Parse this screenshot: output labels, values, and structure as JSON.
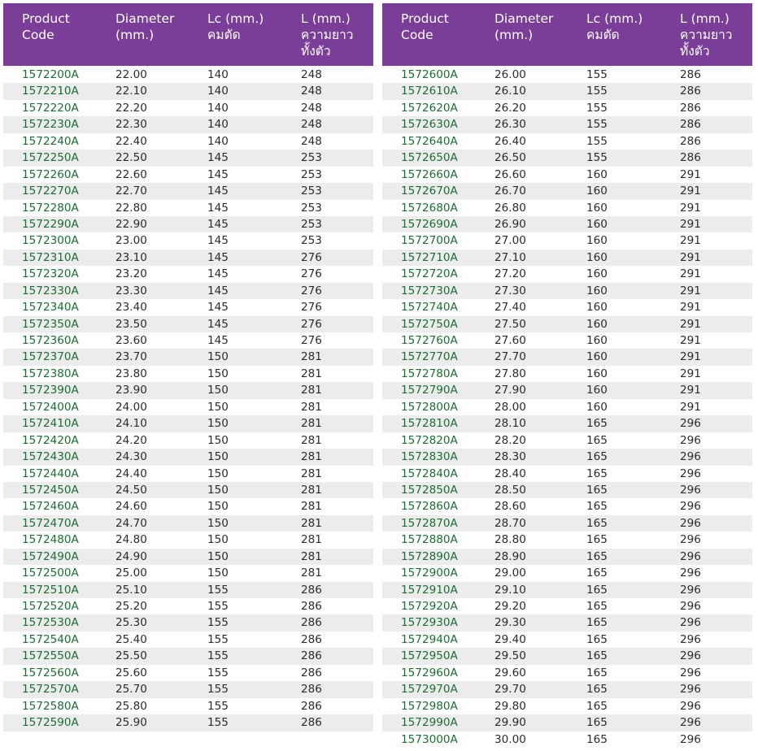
{
  "columns": {
    "code_line1": "Product",
    "code_line2": "Code",
    "diameter_line1": "Diameter",
    "diameter_line2": "(mm.)",
    "lc_line1": "Lc (mm.)",
    "lc_line2": "คมตัด",
    "l_line1": "L (mm.)",
    "l_line2": "ความยาว",
    "l_line3": "ทั้งตัว"
  },
  "left_rows": [
    [
      "1572200A",
      "22.00",
      "140",
      "248"
    ],
    [
      "1572210A",
      "22.10",
      "140",
      "248"
    ],
    [
      "1572220A",
      "22.20",
      "140",
      "248"
    ],
    [
      "1572230A",
      "22.30",
      "140",
      "248"
    ],
    [
      "1572240A",
      "22.40",
      "140",
      "248"
    ],
    [
      "1572250A",
      "22.50",
      "145",
      "253"
    ],
    [
      "1572260A",
      "22.60",
      "145",
      "253"
    ],
    [
      "1572270A",
      "22.70",
      "145",
      "253"
    ],
    [
      "1572280A",
      "22.80",
      "145",
      "253"
    ],
    [
      "1572290A",
      "22.90",
      "145",
      "253"
    ],
    [
      "1572300A",
      "23.00",
      "145",
      "253"
    ],
    [
      "1572310A",
      "23.10",
      "145",
      "276"
    ],
    [
      "1572320A",
      "23.20",
      "145",
      "276"
    ],
    [
      "1572330A",
      "23.30",
      "145",
      "276"
    ],
    [
      "1572340A",
      "23.40",
      "145",
      "276"
    ],
    [
      "1572350A",
      "23.50",
      "145",
      "276"
    ],
    [
      "1572360A",
      "23.60",
      "145",
      "276"
    ],
    [
      "1572370A",
      "23.70",
      "150",
      "281"
    ],
    [
      "1572380A",
      "23.80",
      "150",
      "281"
    ],
    [
      "1572390A",
      "23.90",
      "150",
      "281"
    ],
    [
      "1572400A",
      "24.00",
      "150",
      "281"
    ],
    [
      "1572410A",
      "24.10",
      "150",
      "281"
    ],
    [
      "1572420A",
      "24.20",
      "150",
      "281"
    ],
    [
      "1572430A",
      "24.30",
      "150",
      "281"
    ],
    [
      "1572440A",
      "24.40",
      "150",
      "281"
    ],
    [
      "1572450A",
      "24.50",
      "150",
      "281"
    ],
    [
      "1572460A",
      "24.60",
      "150",
      "281"
    ],
    [
      "1572470A",
      "24.70",
      "150",
      "281"
    ],
    [
      "1572480A",
      "24.80",
      "150",
      "281"
    ],
    [
      "1572490A",
      "24.90",
      "150",
      "281"
    ],
    [
      "1572500A",
      "25.00",
      "150",
      "281"
    ],
    [
      "1572510A",
      "25.10",
      "155",
      "286"
    ],
    [
      "1572520A",
      "25.20",
      "155",
      "286"
    ],
    [
      "1572530A",
      "25.30",
      "155",
      "286"
    ],
    [
      "1572540A",
      "25.40",
      "155",
      "286"
    ],
    [
      "1572550A",
      "25.50",
      "155",
      "286"
    ],
    [
      "1572560A",
      "25.60",
      "155",
      "286"
    ],
    [
      "1572570A",
      "25.70",
      "155",
      "286"
    ],
    [
      "1572580A",
      "25.80",
      "155",
      "286"
    ],
    [
      "1572590A",
      "25.90",
      "155",
      "286"
    ]
  ],
  "right_rows": [
    [
      "1572600A",
      "26.00",
      "155",
      "286"
    ],
    [
      "1572610A",
      "26.10",
      "155",
      "286"
    ],
    [
      "1572620A",
      "26.20",
      "155",
      "286"
    ],
    [
      "1572630A",
      "26.30",
      "155",
      "286"
    ],
    [
      "1572640A",
      "26.40",
      "155",
      "286"
    ],
    [
      "1572650A",
      "26.50",
      "155",
      "286"
    ],
    [
      "1572660A",
      "26.60",
      "160",
      "291"
    ],
    [
      "1572670A",
      "26.70",
      "160",
      "291"
    ],
    [
      "1572680A",
      "26.80",
      "160",
      "291"
    ],
    [
      "1572690A",
      "26.90",
      "160",
      "291"
    ],
    [
      "1572700A",
      "27.00",
      "160",
      "291"
    ],
    [
      "1572710A",
      "27.10",
      "160",
      "291"
    ],
    [
      "1572720A",
      "27.20",
      "160",
      "291"
    ],
    [
      "1572730A",
      "27.30",
      "160",
      "291"
    ],
    [
      "1572740A",
      "27.40",
      "160",
      "291"
    ],
    [
      "1572750A",
      "27.50",
      "160",
      "291"
    ],
    [
      "1572760A",
      "27.60",
      "160",
      "291"
    ],
    [
      "1572770A",
      "27.70",
      "160",
      "291"
    ],
    [
      "1572780A",
      "27.80",
      "160",
      "291"
    ],
    [
      "1572790A",
      "27.90",
      "160",
      "291"
    ],
    [
      "1572800A",
      "28.00",
      "160",
      "291"
    ],
    [
      "1572810A",
      "28.10",
      "165",
      "296"
    ],
    [
      "1572820A",
      "28.20",
      "165",
      "296"
    ],
    [
      "1572830A",
      "28.30",
      "165",
      "296"
    ],
    [
      "1572840A",
      "28.40",
      "165",
      "296"
    ],
    [
      "1572850A",
      "28.50",
      "165",
      "296"
    ],
    [
      "1572860A",
      "28.60",
      "165",
      "296"
    ],
    [
      "1572870A",
      "28.70",
      "165",
      "296"
    ],
    [
      "1572880A",
      "28.80",
      "165",
      "296"
    ],
    [
      "1572890A",
      "28.90",
      "165",
      "296"
    ],
    [
      "1572900A",
      "29.00",
      "165",
      "296"
    ],
    [
      "1572910A",
      "29.10",
      "165",
      "296"
    ],
    [
      "1572920A",
      "29.20",
      "165",
      "296"
    ],
    [
      "1572930A",
      "29.30",
      "165",
      "296"
    ],
    [
      "1572940A",
      "29.40",
      "165",
      "296"
    ],
    [
      "1572950A",
      "29.50",
      "165",
      "296"
    ],
    [
      "1572960A",
      "29.60",
      "165",
      "296"
    ],
    [
      "1572970A",
      "29.70",
      "165",
      "296"
    ],
    [
      "1572980A",
      "29.80",
      "165",
      "296"
    ],
    [
      "1572990A",
      "29.90",
      "165",
      "296"
    ],
    [
      "1573000A",
      "30.00",
      "165",
      "296"
    ]
  ],
  "colors": {
    "header_bg": "#7a3e98",
    "header_text": "#ffffff",
    "code_text": "#1a6e33",
    "row_stripe": "#ececec"
  }
}
